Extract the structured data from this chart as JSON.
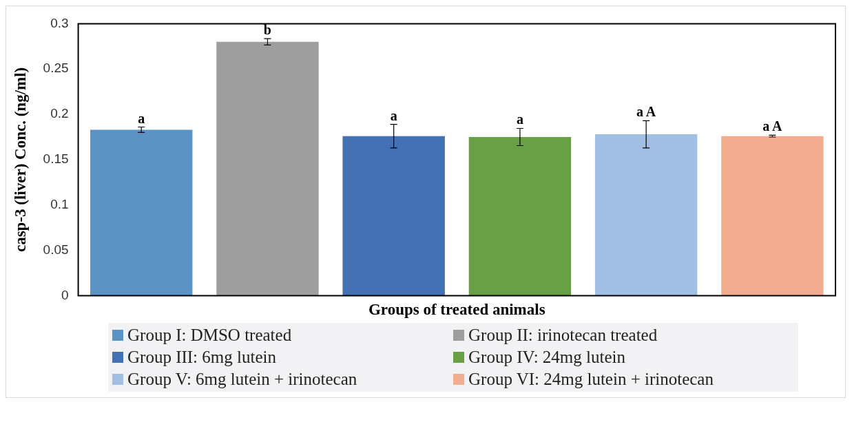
{
  "chart_data": {
    "type": "bar",
    "xlabel": "Groups of treated animals",
    "ylabel": "casp-3 (liver) Conc. (ng/ml)",
    "categories": [
      null
    ],
    "series": [
      {
        "name": "Group I: DMSO treated",
        "color": "#5b93c5",
        "values": [
          0.183
        ],
        "errors": [
          0.003
        ],
        "value_labels": [
          "a"
        ]
      },
      {
        "name": "Group II: irinotecan treated",
        "color": "#9e9e9e",
        "values": [
          0.28
        ],
        "errors": [
          0.0035
        ],
        "value_labels": [
          "b"
        ]
      },
      {
        "name": "Group III: 6mg lutein",
        "color": "#4470b5",
        "values": [
          0.176
        ],
        "errors": [
          0.013
        ],
        "value_labels": [
          "a"
        ]
      },
      {
        "name": "Group IV: 24mg lutein",
        "color": "#6aa045",
        "values": [
          0.175
        ],
        "errors": [
          0.0095
        ],
        "value_labels": [
          "a"
        ]
      },
      {
        "name": "Group V: 6mg lutein + irinotecan",
        "color": "#a0bfe3",
        "values": [
          0.178
        ],
        "errors": [
          0.015
        ],
        "value_labels": [
          "a A"
        ]
      },
      {
        "name": "Group VI: 24mg lutein + irinotecan",
        "color": "#f2ad90",
        "values": [
          0.176
        ],
        "errors": [
          0.001
        ],
        "value_labels": [
          "a A"
        ]
      }
    ],
    "ylim": [
      0,
      0.3
    ],
    "yticks": [
      0,
      0.05,
      0.1,
      0.15,
      0.2,
      0.25,
      0.3
    ],
    "grid": false,
    "legend": "bottom"
  }
}
